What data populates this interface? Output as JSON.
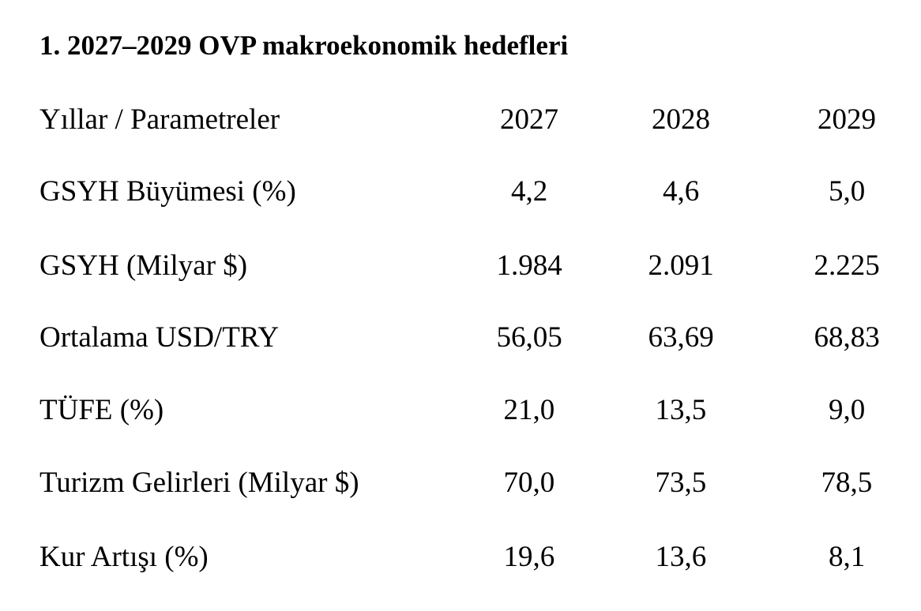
{
  "title": "1. 2027–2029 OVP makroekonomik hedefleri",
  "table": {
    "header": [
      "Yıllar / Parametreler",
      "2027",
      "2028",
      "2029"
    ],
    "rows": [
      [
        "GSYH Büyümesi (%)",
        "4,2",
        "4,6",
        "5,0"
      ],
      [
        "GSYH (Milyar $)",
        "1.984",
        "2.091",
        "2.225"
      ],
      [
        "Ortalama USD/TRY",
        "56,05",
        "63,69",
        "68,83"
      ],
      [
        "TÜFE (%)",
        "21,0",
        "13,5",
        "9,0"
      ],
      [
        "Turizm Gelirleri (Milyar $)",
        "70,0",
        "73,5",
        "78,5"
      ],
      [
        "Kur Artışı (%)",
        "19,6",
        "13,6",
        "8,1"
      ]
    ]
  }
}
